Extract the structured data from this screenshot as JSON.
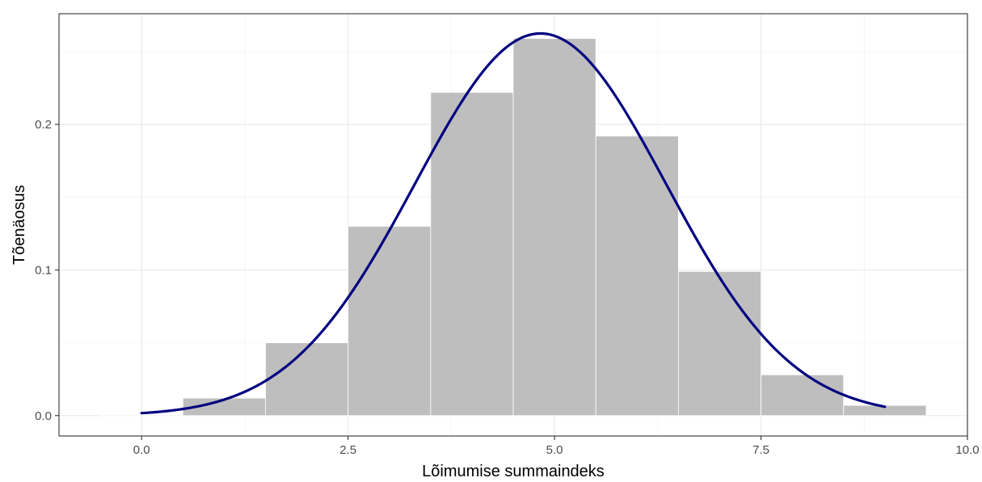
{
  "chart_data": {
    "type": "bar",
    "title": "",
    "xlabel": "Lõimumise summaindeks",
    "ylabel": "Tõenäosus",
    "xlim": [
      -1.0,
      10.0
    ],
    "ylim": [
      -0.014,
      0.276
    ],
    "x_ticks": [
      0.0,
      2.5,
      5.0,
      7.5,
      10.0
    ],
    "x_tick_labels": [
      "0.0",
      "2.5",
      "5.0",
      "7.5",
      "10.0"
    ],
    "y_ticks": [
      0.0,
      0.1,
      0.2
    ],
    "y_tick_labels": [
      "0.0",
      "0.1",
      "0.2"
    ],
    "grid": true,
    "bins": [
      {
        "x0": -0.5,
        "x1": 0.5,
        "value": 0.0005
      },
      {
        "x0": 0.5,
        "x1": 1.5,
        "value": 0.012
      },
      {
        "x0": 1.5,
        "x1": 2.5,
        "value": 0.05
      },
      {
        "x0": 2.5,
        "x1": 3.5,
        "value": 0.13
      },
      {
        "x0": 3.5,
        "x1": 4.5,
        "value": 0.222
      },
      {
        "x0": 4.5,
        "x1": 5.5,
        "value": 0.259
      },
      {
        "x0": 5.5,
        "x1": 6.5,
        "value": 0.192
      },
      {
        "x0": 6.5,
        "x1": 7.5,
        "value": 0.099
      },
      {
        "x0": 7.5,
        "x1": 8.5,
        "value": 0.028
      },
      {
        "x0": 8.5,
        "x1": 9.5,
        "value": 0.007
      }
    ],
    "density_curve": {
      "type": "normal",
      "mean": 4.83,
      "sd": 1.52,
      "x_range": [
        0.0,
        9.0
      ]
    },
    "colors": {
      "bars": "#bebebe",
      "bar_outline": "#ffffff",
      "curve": "#000080",
      "grid_major": "#ebebeb",
      "grid_minor": "#f4f4f4",
      "panel_border": "#333333"
    }
  }
}
